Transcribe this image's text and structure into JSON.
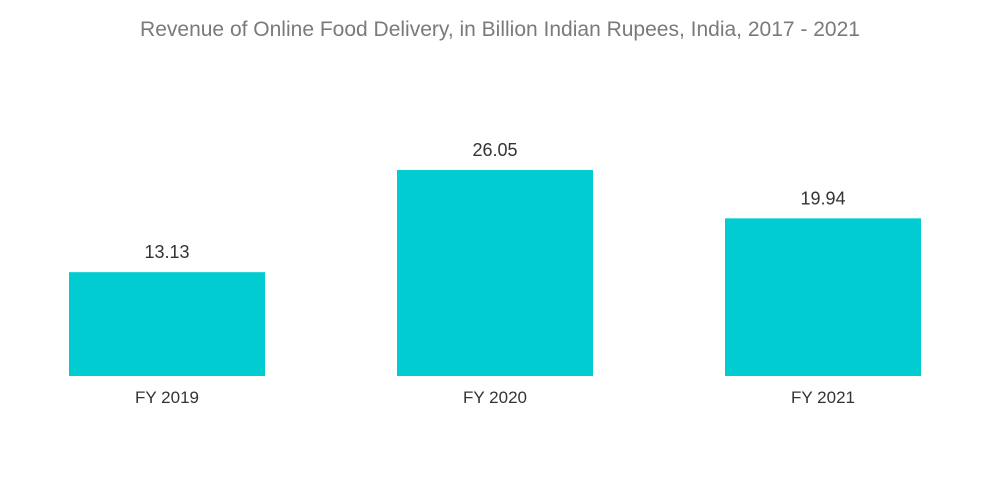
{
  "chart_data": {
    "type": "bar",
    "title": "Revenue of Online Food Delivery, in Billion Indian Rupees, India, 2017 -  2021",
    "categories": [
      "FY 2019",
      "FY 2020",
      "FY 2021"
    ],
    "series": [
      {
        "values": [
          13.13,
          26.05,
          19.94
        ],
        "labels": [
          "13.13",
          "26.05",
          "19.94"
        ],
        "color": "#00ccd1"
      }
    ],
    "xlabel": "",
    "ylabel": "",
    "ylim": [
      0,
      26.05
    ],
    "grid": false,
    "legend": "none"
  }
}
